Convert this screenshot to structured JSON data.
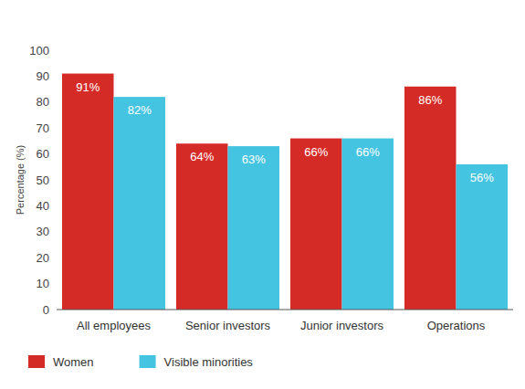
{
  "chart_data": {
    "type": "bar",
    "y_label": "Percentage (%)",
    "categories": [
      "All employees",
      "Senior investors",
      "Junior investors",
      "Operations"
    ],
    "series": [
      {
        "name": "Women",
        "color": "#d52b27",
        "values": [
          91,
          64,
          66,
          86
        ],
        "value_labels": [
          "91%",
          "64%",
          "66%",
          "86%"
        ]
      },
      {
        "name": "Visible minorities",
        "color": "#45c4e1",
        "values": [
          82,
          63,
          66,
          56
        ],
        "value_labels": [
          "82%",
          "63%",
          "66%",
          "56%"
        ]
      }
    ],
    "ylim": [
      0,
      100
    ],
    "yticks": [
      0,
      10,
      20,
      30,
      40,
      50,
      60,
      70,
      80,
      90,
      100
    ],
    "grid": false,
    "legend": "bottom",
    "data_labels": true
  }
}
